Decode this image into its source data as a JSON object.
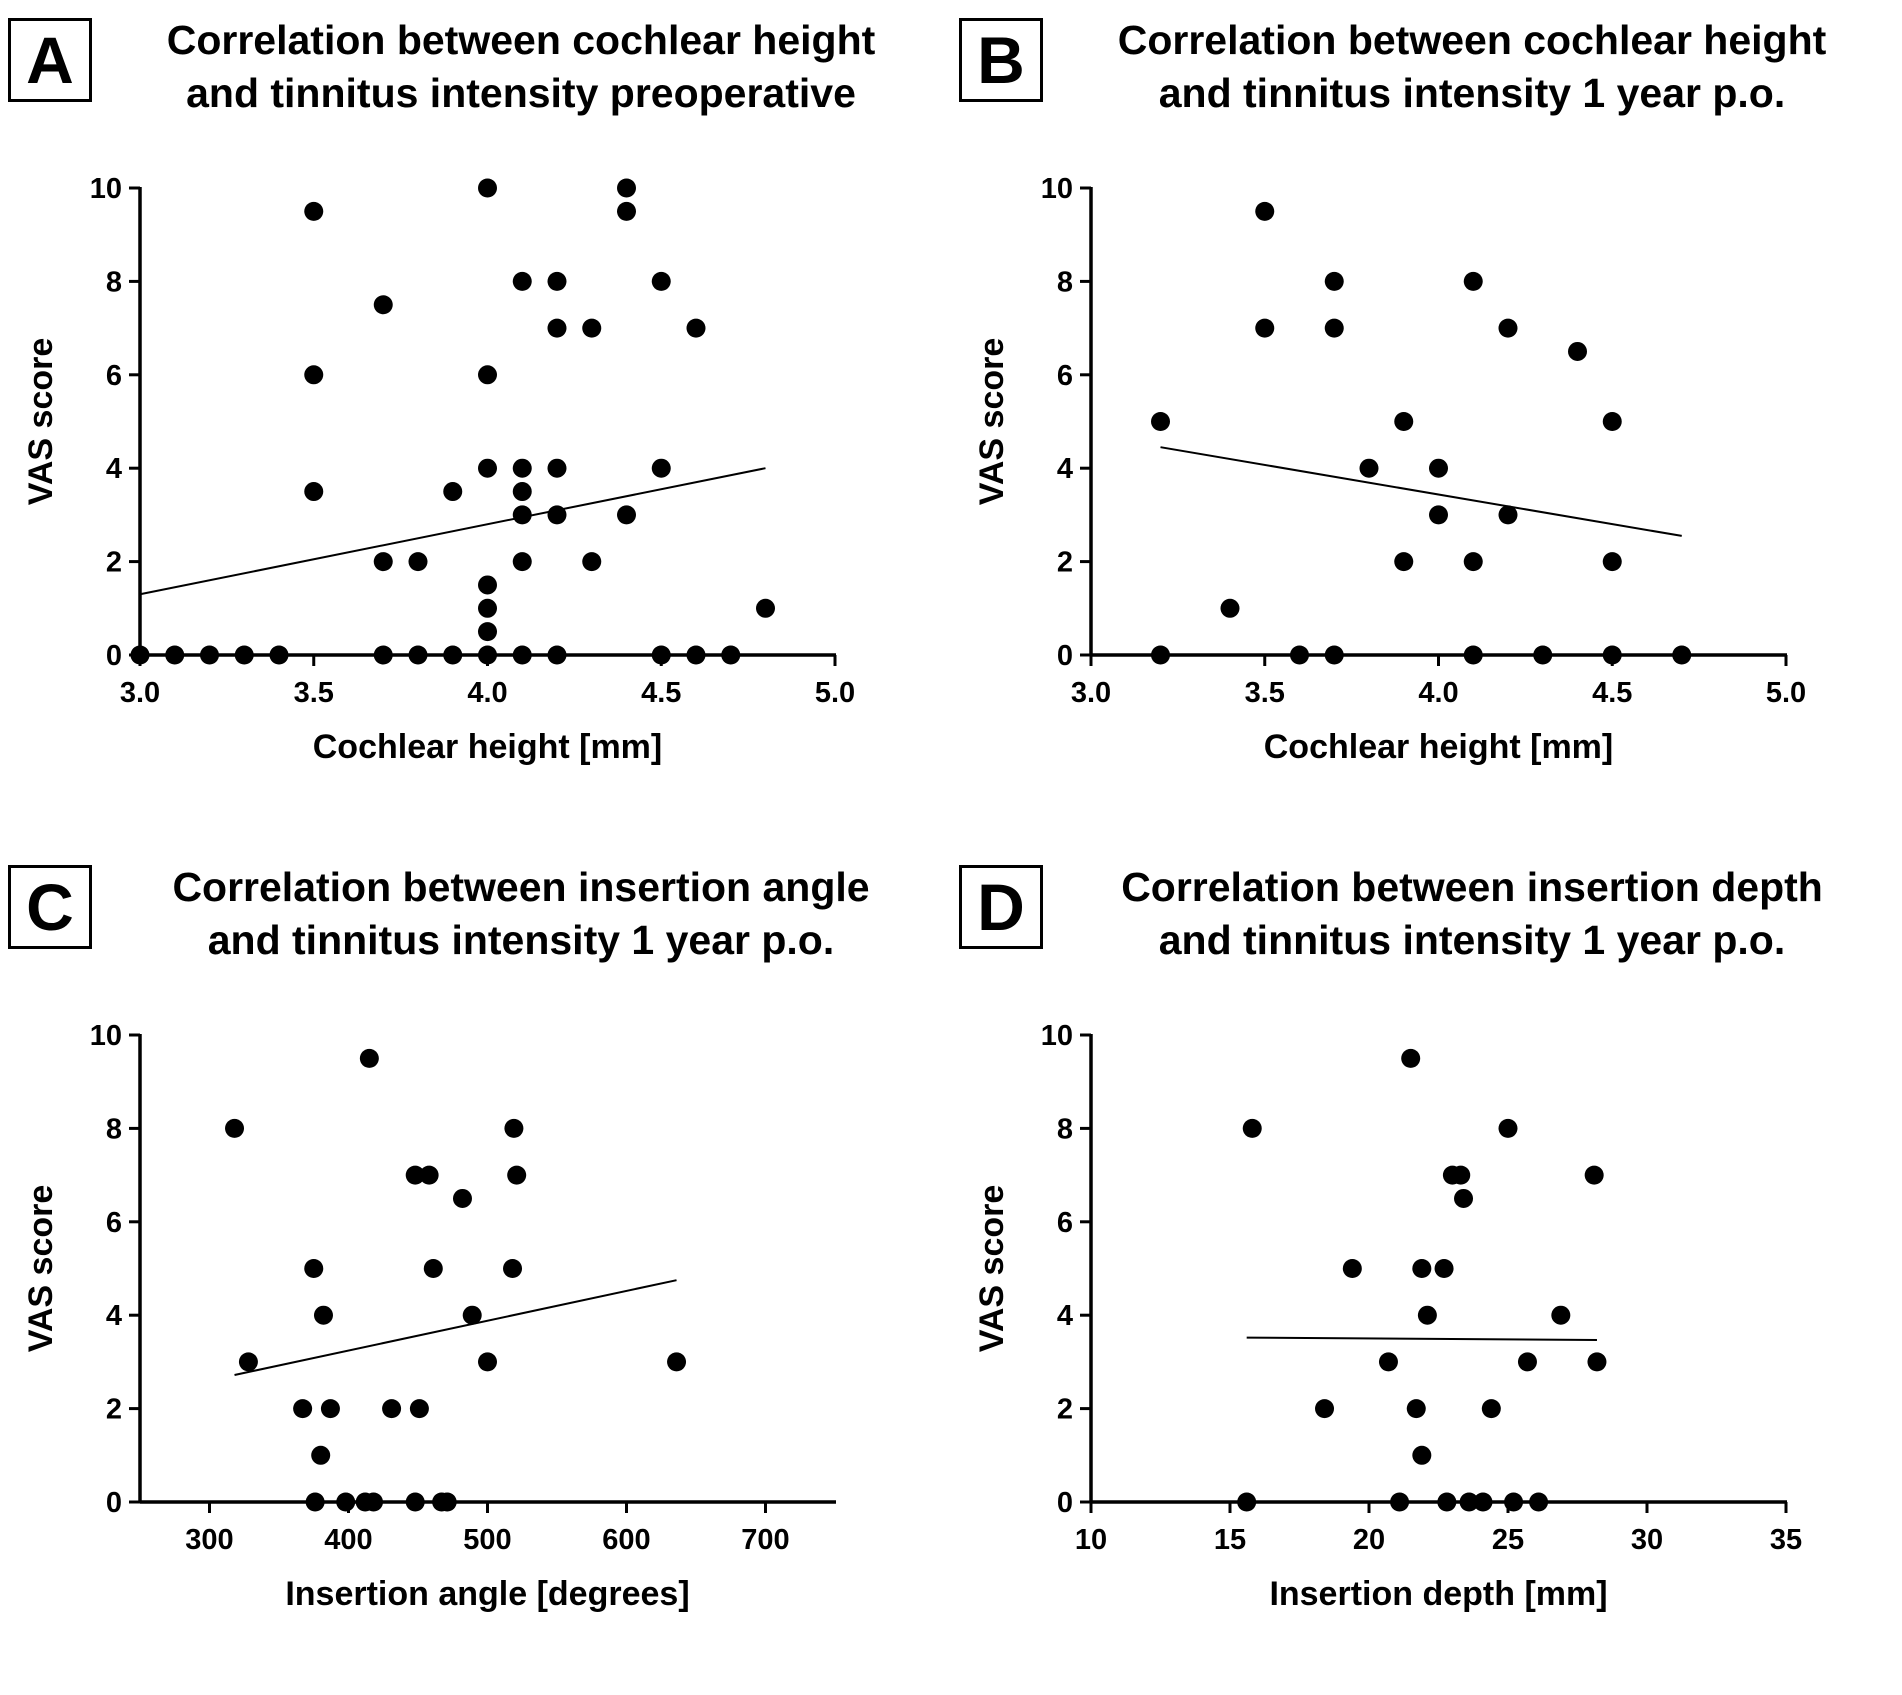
{
  "colors": {
    "ink": "#000000",
    "background": "#ffffff"
  },
  "panels": [
    {
      "letter": "A",
      "title_lines": [
        "Correlation between cochlear height",
        "and tinnitus intensity preoperative"
      ]
    },
    {
      "letter": "B",
      "title_lines": [
        "Correlation between cochlear height",
        "and tinnitus intensity 1 year p.o."
      ]
    },
    {
      "letter": "C",
      "title_lines": [
        "Correlation between insertion angle",
        "and tinnitus intensity 1 year p.o."
      ]
    },
    {
      "letter": "D",
      "title_lines": [
        "Correlation between insertion depth",
        "and tinnitus intensity 1 year p.o."
      ]
    }
  ],
  "chart_data": [
    {
      "type": "scatter",
      "panel": "A",
      "title": "Correlation between cochlear height and tinnitus intensity preoperative",
      "xlabel": "Cochlear height [mm]",
      "ylabel": "VAS score",
      "xlim": [
        3.0,
        5.0
      ],
      "ylim": [
        0,
        10
      ],
      "xticks": [
        "3.0",
        "3.5",
        "4.0",
        "4.5",
        "5.0"
      ],
      "yticks": [
        "0",
        "2",
        "4",
        "6",
        "8",
        "10"
      ],
      "grid": false,
      "points": [
        [
          3.0,
          0
        ],
        [
          3.1,
          0
        ],
        [
          3.2,
          0
        ],
        [
          3.3,
          0
        ],
        [
          3.4,
          0
        ],
        [
          3.5,
          9.5
        ],
        [
          3.5,
          6
        ],
        [
          3.5,
          3.5
        ],
        [
          3.7,
          7.5
        ],
        [
          3.7,
          2
        ],
        [
          3.7,
          0
        ],
        [
          3.8,
          2
        ],
        [
          3.8,
          0
        ],
        [
          3.9,
          3.5
        ],
        [
          3.9,
          0
        ],
        [
          4.0,
          10
        ],
        [
          4.0,
          6
        ],
        [
          4.0,
          4
        ],
        [
          4.0,
          1.5
        ],
        [
          4.0,
          1
        ],
        [
          4.0,
          0.5
        ],
        [
          4.0,
          0
        ],
        [
          4.1,
          8
        ],
        [
          4.1,
          4
        ],
        [
          4.1,
          3.5
        ],
        [
          4.1,
          3
        ],
        [
          4.1,
          2
        ],
        [
          4.1,
          0
        ],
        [
          4.2,
          8
        ],
        [
          4.2,
          7
        ],
        [
          4.2,
          4
        ],
        [
          4.2,
          3
        ],
        [
          4.2,
          0
        ],
        [
          4.3,
          7
        ],
        [
          4.3,
          2
        ],
        [
          4.4,
          10
        ],
        [
          4.4,
          9.5
        ],
        [
          4.4,
          3
        ],
        [
          4.5,
          8
        ],
        [
          4.5,
          4
        ],
        [
          4.5,
          0
        ],
        [
          4.6,
          7
        ],
        [
          4.6,
          0
        ],
        [
          4.7,
          0
        ],
        [
          4.8,
          1
        ]
      ],
      "trendline": [
        [
          3.0,
          1.3
        ],
        [
          4.8,
          4.0
        ]
      ]
    },
    {
      "type": "scatter",
      "panel": "B",
      "title": "Correlation between cochlear height and tinnitus intensity 1 year p.o.",
      "xlabel": "Cochlear height [mm]",
      "ylabel": "VAS score",
      "xlim": [
        3.0,
        5.0
      ],
      "ylim": [
        0,
        10
      ],
      "xticks": [
        "3.0",
        "3.5",
        "4.0",
        "4.5",
        "5.0"
      ],
      "yticks": [
        "0",
        "2",
        "4",
        "6",
        "8",
        "10"
      ],
      "grid": false,
      "points": [
        [
          3.2,
          5
        ],
        [
          3.2,
          0
        ],
        [
          3.4,
          1
        ],
        [
          3.5,
          9.5
        ],
        [
          3.5,
          7
        ],
        [
          3.6,
          0
        ],
        [
          3.7,
          8
        ],
        [
          3.7,
          7
        ],
        [
          3.7,
          0
        ],
        [
          3.8,
          4
        ],
        [
          3.9,
          5
        ],
        [
          3.9,
          2
        ],
        [
          4.0,
          4
        ],
        [
          4.0,
          3
        ],
        [
          4.1,
          8
        ],
        [
          4.1,
          2
        ],
        [
          4.1,
          0
        ],
        [
          4.2,
          7
        ],
        [
          4.2,
          3
        ],
        [
          4.3,
          0
        ],
        [
          4.4,
          6.5
        ],
        [
          4.5,
          5
        ],
        [
          4.5,
          2
        ],
        [
          4.5,
          0
        ],
        [
          4.7,
          0
        ]
      ],
      "trendline": [
        [
          3.2,
          4.45
        ],
        [
          4.7,
          2.55
        ]
      ]
    },
    {
      "type": "scatter",
      "panel": "C",
      "title": "Correlation between insertion angle and tinnitus intensity 1 year p.o.",
      "xlabel": "Insertion angle [degrees]",
      "ylabel": "VAS score",
      "xlim": [
        250,
        750
      ],
      "ylim": [
        0,
        10
      ],
      "xticks": [
        "300",
        "400",
        "500",
        "600",
        "700"
      ],
      "yticks": [
        "0",
        "2",
        "4",
        "6",
        "8",
        "10"
      ],
      "grid": false,
      "points": [
        [
          318,
          8
        ],
        [
          328,
          3
        ],
        [
          367,
          2
        ],
        [
          375,
          5
        ],
        [
          376,
          0
        ],
        [
          380,
          1
        ],
        [
          382,
          4
        ],
        [
          387,
          2
        ],
        [
          398,
          0
        ],
        [
          412,
          0
        ],
        [
          415,
          9.5
        ],
        [
          418,
          0
        ],
        [
          431,
          2
        ],
        [
          448,
          7
        ],
        [
          448,
          0
        ],
        [
          451,
          2
        ],
        [
          458,
          7
        ],
        [
          461,
          5
        ],
        [
          467,
          0
        ],
        [
          471,
          0
        ],
        [
          482,
          6.5
        ],
        [
          489,
          4
        ],
        [
          500,
          3
        ],
        [
          518,
          5
        ],
        [
          519,
          8
        ],
        [
          521,
          7
        ],
        [
          636,
          3
        ]
      ],
      "trendline": [
        [
          318,
          2.72
        ],
        [
          636,
          4.75
        ]
      ]
    },
    {
      "type": "scatter",
      "panel": "D",
      "title": "Correlation between insertion depth and tinnitus intensity 1 year p.o.",
      "xlabel": "Insertion depth [mm]",
      "ylabel": "VAS score",
      "xlim": [
        10,
        35
      ],
      "ylim": [
        0,
        10
      ],
      "xticks": [
        "10",
        "15",
        "20",
        "25",
        "30",
        "35"
      ],
      "yticks": [
        "0",
        "2",
        "4",
        "6",
        "8",
        "10"
      ],
      "grid": false,
      "points": [
        [
          15.6,
          0
        ],
        [
          15.8,
          8
        ],
        [
          18.4,
          2
        ],
        [
          19.4,
          5
        ],
        [
          20.7,
          3
        ],
        [
          21.1,
          0
        ],
        [
          21.5,
          9.5
        ],
        [
          21.7,
          2
        ],
        [
          21.9,
          1
        ],
        [
          21.9,
          5
        ],
        [
          22.1,
          4
        ],
        [
          22.7,
          5
        ],
        [
          22.8,
          0
        ],
        [
          23.0,
          7
        ],
        [
          23.3,
          7
        ],
        [
          23.4,
          6.5
        ],
        [
          23.6,
          0
        ],
        [
          24.1,
          0
        ],
        [
          24.4,
          2
        ],
        [
          25.0,
          8
        ],
        [
          25.2,
          0
        ],
        [
          25.7,
          3
        ],
        [
          26.1,
          0
        ],
        [
          26.9,
          4
        ],
        [
          28.1,
          7
        ],
        [
          28.2,
          3
        ]
      ],
      "trendline": [
        [
          15.6,
          3.52
        ],
        [
          28.2,
          3.47
        ]
      ]
    }
  ]
}
